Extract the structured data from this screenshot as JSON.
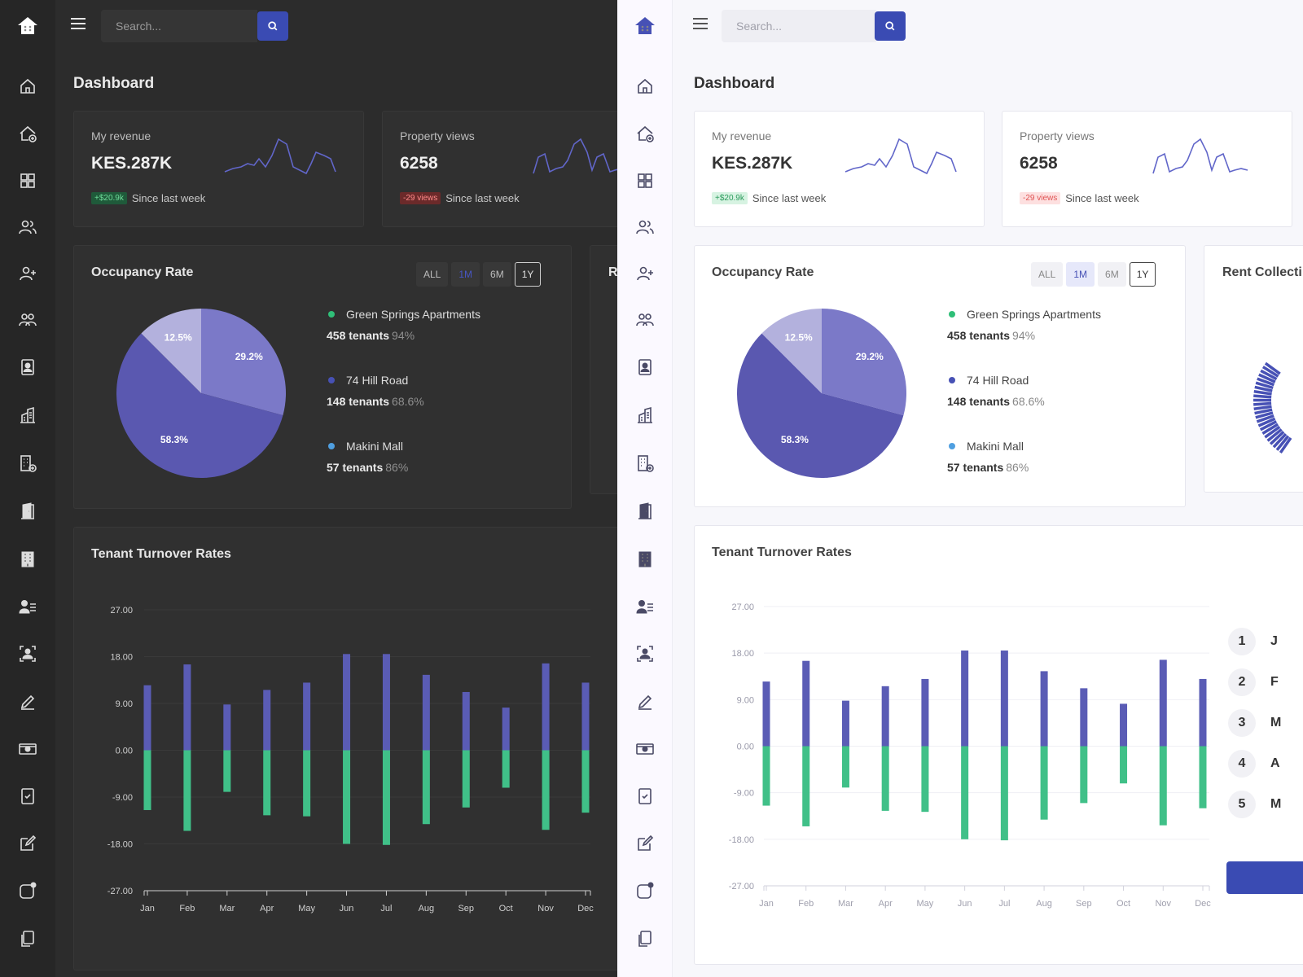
{
  "search": {
    "placeholder": "Search..."
  },
  "page": {
    "title": "Dashboard"
  },
  "stats": [
    {
      "label": "My revenue",
      "value": "KES.287K",
      "change": "+$20.9k",
      "change_type": "up",
      "since": "Since last week"
    },
    {
      "label": "Property views",
      "value": "6258",
      "change": "-29 views",
      "change_type": "down",
      "since": "Since last week"
    }
  ],
  "occupancy": {
    "title": "Occupancy Rate",
    "ranges": [
      "ALL",
      "1M",
      "6M",
      "1Y"
    ],
    "active_range": "1M",
    "outlined_range": "1Y",
    "properties": [
      {
        "name": "Green Springs Apartments",
        "tenants": "458 tenants",
        "pct": "94%",
        "color": "#2fbf78"
      },
      {
        "name": "74 Hill Road",
        "tenants": "148 tenants",
        "pct": "68.6%",
        "color": "#4751b5"
      },
      {
        "name": "Makini Mall",
        "tenants": "57 tenants",
        "pct": "86%",
        "color": "#4f9fe0"
      }
    ]
  },
  "rent_collection": {
    "title_dark": "Re",
    "title_light": "Rent Collecti"
  },
  "ranking": {
    "numbers": [
      "1",
      "2",
      "3",
      "4",
      "5"
    ],
    "initials": [
      "J",
      "F",
      "M",
      "A",
      "M"
    ]
  },
  "colors": {
    "accent": "#3a4bb3",
    "bar_positive": "#5a5cb5",
    "bar_negative": "#40c088",
    "pie_light": "#b3b1dd",
    "pie_mid": "#7b79c8",
    "pie_dark": "#5a58b0"
  },
  "chart_data": [
    {
      "type": "pie",
      "title": "Occupancy Rate",
      "labels": [
        "29.2%",
        "58.3%",
        "12.5%"
      ],
      "values": [
        29.2,
        58.3,
        12.5
      ]
    },
    {
      "type": "bar",
      "title": "Tenant Turnover Rates",
      "categories": [
        "Jan",
        "Feb",
        "Mar",
        "Apr",
        "May",
        "Jun",
        "Jul",
        "Aug",
        "Sep",
        "Oct",
        "Nov",
        "Dec"
      ],
      "y_ticks": [
        "27.00",
        "18.00",
        "9.00",
        "0.00",
        "-9.00",
        "-18.00",
        "-27.00"
      ],
      "ylim": [
        -27,
        27
      ],
      "series": [
        {
          "values": [
            12.5,
            16.5,
            8.8,
            11.6,
            13,
            18.5,
            18.5,
            14.5,
            11.2,
            8.2,
            16.7,
            13
          ]
        },
        {
          "values": [
            -11.5,
            -15.5,
            -8,
            -12.5,
            -12.7,
            -18,
            -18.2,
            -14.2,
            -11,
            -7.2,
            -15.3,
            -12
          ]
        }
      ]
    }
  ]
}
